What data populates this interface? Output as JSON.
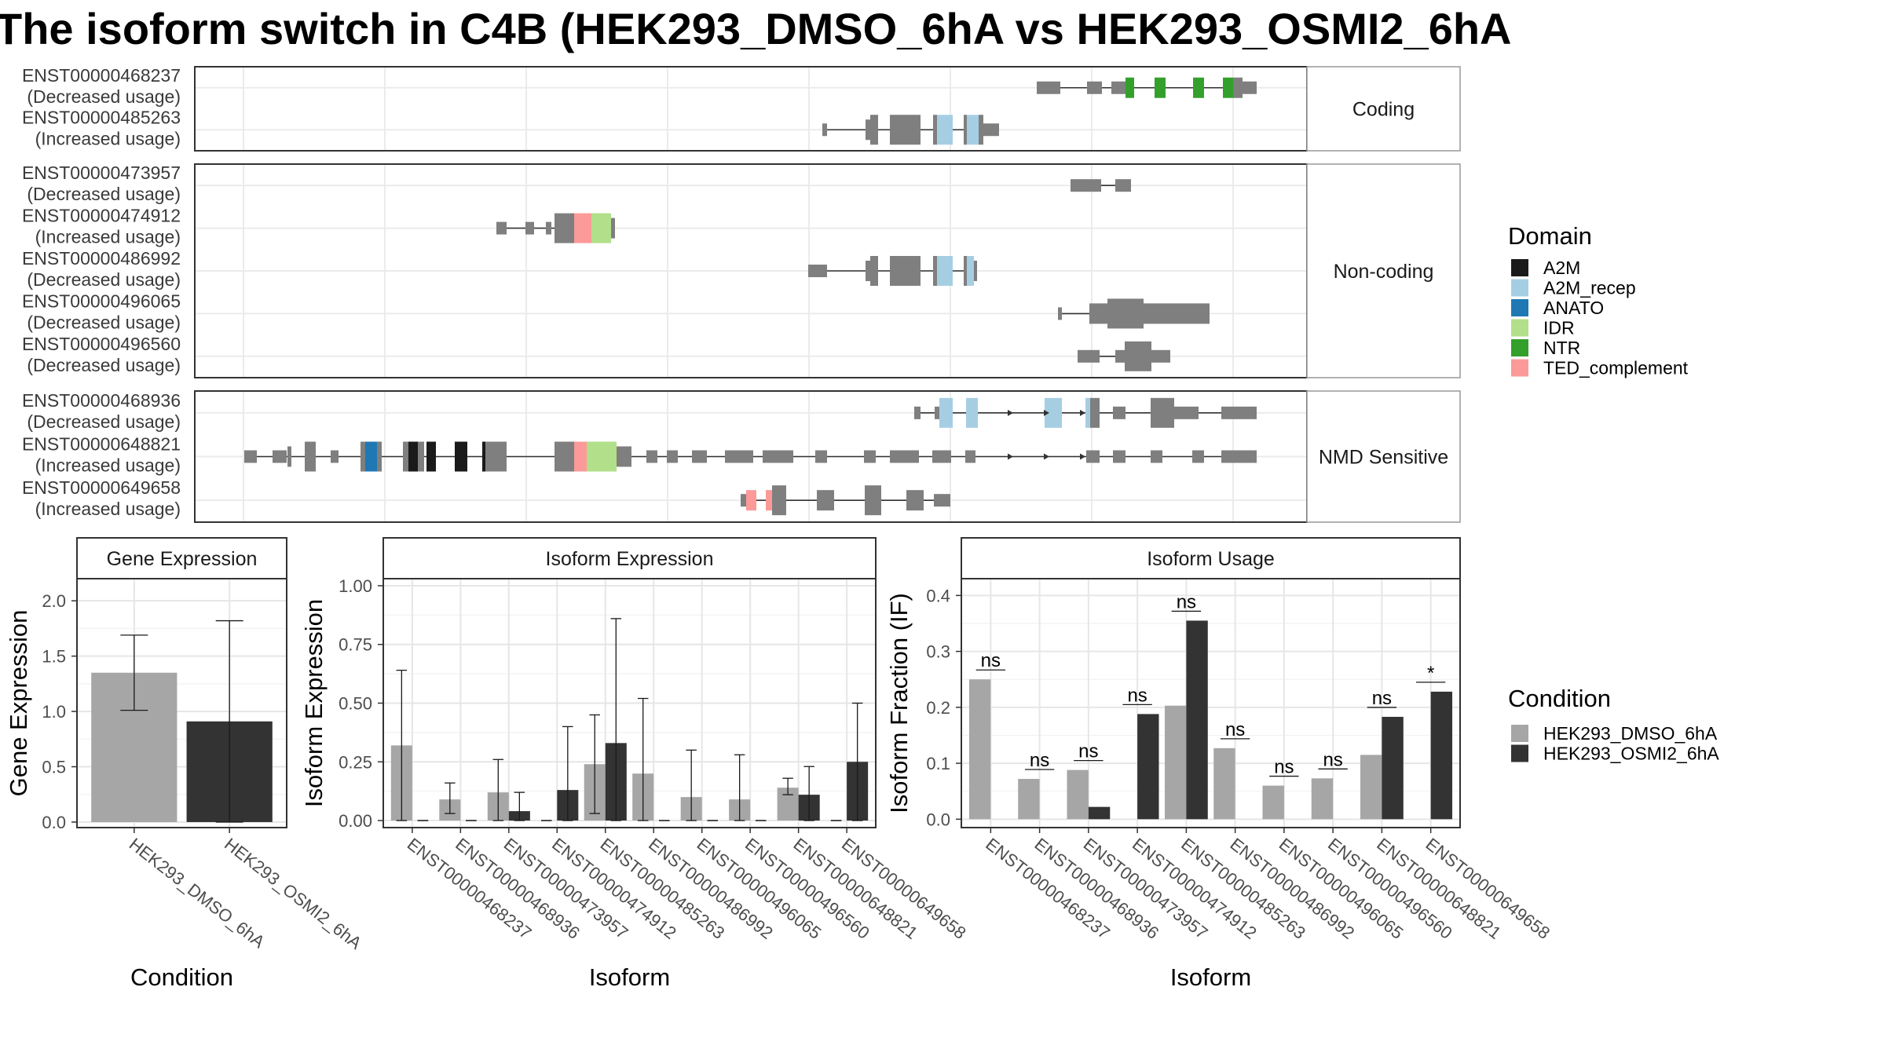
{
  "title": "The isoform switch in C4B (HEK293_DMSO_6hA vs HEK293_OSMI2_6hA",
  "colors": {
    "exon": "#7f7f7f",
    "A2M": "#1a1a1a",
    "A2M_recep": "#a6cee3",
    "ANATO": "#1f78b4",
    "IDR": "#b2df8a",
    "NTR": "#33a02c",
    "TED_complement": "#fb9a99",
    "HEK293_DMSO_6hA": "#a6a6a6",
    "HEK293_OSMI2_6hA": "#333333"
  },
  "structure": {
    "panels": [
      {
        "facet": "Coding",
        "isoforms": [
          {
            "id": "ENST00000468237",
            "usage": "(Decreased usage)",
            "exons": [
              [
                1320,
                1350,
                "exon",
                16
              ],
              [
                1384,
                1403,
                "exon",
                16
              ],
              [
                1415,
                1433,
                "exon",
                16
              ],
              [
                1433,
                1444,
                "NTR",
                26
              ],
              [
                1470,
                1484,
                "NTR",
                26
              ],
              [
                1519,
                1533,
                "NTR",
                26
              ],
              [
                1557,
                1570,
                "NTR",
                26
              ],
              [
                1570,
                1582,
                "exon",
                26
              ],
              [
                1582,
                1600,
                "exon",
                16
              ]
            ]
          },
          {
            "id": "ENST00000485263",
            "usage": "(Increased usage)",
            "exons": [
              [
                1047,
                1053,
                "exon",
                16
              ],
              [
                1102,
                1108,
                "exon",
                26
              ],
              [
                1108,
                1118,
                "exon",
                38
              ],
              [
                1133,
                1172,
                "exon",
                38
              ],
              [
                1188,
                1193,
                "exon",
                38
              ],
              [
                1193,
                1213,
                "A2M_recep",
                38
              ],
              [
                1227,
                1231,
                "exon",
                38
              ],
              [
                1231,
                1246,
                "A2M_recep",
                38
              ],
              [
                1246,
                1252,
                "exon",
                38
              ],
              [
                1252,
                1272,
                "exon",
                16
              ]
            ]
          }
        ]
      },
      {
        "facet": "Non-coding",
        "isoforms": [
          {
            "id": "ENST00000473957",
            "usage": "(Decreased usage)",
            "exons": [
              [
                1363,
                1402,
                "exon",
                16
              ],
              [
                1420,
                1440,
                "exon",
                16
              ]
            ]
          },
          {
            "id": "ENST00000474912",
            "usage": "(Increased usage)",
            "exons": [
              [
                632,
                645,
                "exon",
                16
              ],
              [
                669,
                680,
                "exon",
                16
              ],
              [
                695,
                702,
                "exon",
                16
              ],
              [
                706,
                731,
                "exon",
                38
              ],
              [
                731,
                753,
                "TED_complement",
                38
              ],
              [
                753,
                778,
                "IDR",
                38
              ],
              [
                778,
                783,
                "exon",
                26
              ]
            ]
          },
          {
            "id": "ENST00000486992",
            "usage": "(Decreased usage)",
            "exons": [
              [
                1029,
                1053,
                "exon",
                16
              ],
              [
                1102,
                1108,
                "exon",
                26
              ],
              [
                1108,
                1118,
                "exon",
                38
              ],
              [
                1133,
                1172,
                "exon",
                38
              ],
              [
                1188,
                1193,
                "exon",
                38
              ],
              [
                1193,
                1213,
                "A2M_recep",
                38
              ],
              [
                1227,
                1231,
                "exon",
                38
              ],
              [
                1231,
                1240,
                "A2M_recep",
                38
              ],
              [
                1240,
                1244,
                "exon",
                26
              ]
            ]
          },
          {
            "id": "ENST00000496065",
            "usage": "(Decreased usage)",
            "exons": [
              [
                1347,
                1352,
                "exon",
                16
              ],
              [
                1387,
                1410,
                "exon",
                26
              ],
              [
                1410,
                1456,
                "exon",
                38
              ],
              [
                1456,
                1540,
                "exon",
                26
              ]
            ]
          },
          {
            "id": "ENST00000496560",
            "usage": "(Decreased usage)",
            "exons": [
              [
                1372,
                1400,
                "exon",
                16
              ],
              [
                1420,
                1432,
                "exon",
                16
              ],
              [
                1432,
                1466,
                "exon",
                38
              ],
              [
                1466,
                1490,
                "exon",
                16
              ]
            ]
          }
        ]
      },
      {
        "facet": "NMD Sensitive",
        "isoforms": [
          {
            "id": "ENST00000468936",
            "usage": "(Decreased usage)",
            "exons": [
              [
                1164,
                1172,
                "exon",
                16
              ],
              [
                1190,
                1196,
                "exon",
                16
              ],
              [
                1196,
                1213,
                "A2M_recep",
                38
              ],
              [
                1230,
                1245,
                "A2M_recep",
                38
              ],
              [
                1330,
                1352,
                "A2M_recep",
                38
              ],
              [
                1382,
                1388,
                "A2M_recep",
                38
              ],
              [
                1388,
                1400,
                "exon",
                38
              ],
              [
                1417,
                1433,
                "exon",
                16
              ],
              [
                1465,
                1495,
                "exon",
                38
              ],
              [
                1495,
                1526,
                "exon",
                16
              ],
              [
                1555,
                1600,
                "exon",
                16
              ]
            ]
          },
          {
            "id": "ENST00000648821",
            "usage": "(Increased usage)",
            "exons": [
              [
                311,
                327,
                "exon",
                16
              ],
              [
                347,
                365,
                "exon",
                16
              ],
              [
                366,
                371,
                "exon",
                26
              ],
              [
                388,
                402,
                "exon",
                38
              ],
              [
                421,
                431,
                "exon",
                16
              ],
              [
                459,
                465,
                "exon",
                38
              ],
              [
                465,
                480,
                "ANATO",
                38
              ],
              [
                480,
                486,
                "exon",
                38
              ],
              [
                513,
                520,
                "exon",
                38
              ],
              [
                520,
                532,
                "A2M",
                38
              ],
              [
                532,
                540,
                "exon",
                38
              ],
              [
                543,
                555,
                "A2M",
                38
              ],
              [
                579,
                595,
                "A2M",
                38
              ],
              [
                614,
                618,
                "A2M",
                38
              ],
              [
                618,
                645,
                "exon",
                38
              ],
              [
                706,
                731,
                "exon",
                38
              ],
              [
                731,
                747,
                "TED_complement",
                38
              ],
              [
                747,
                785,
                "IDR",
                38
              ],
              [
                785,
                804,
                "exon",
                26
              ],
              [
                823,
                837,
                "exon",
                16
              ],
              [
                849,
                863,
                "exon",
                16
              ],
              [
                881,
                900,
                "exon",
                16
              ],
              [
                923,
                959,
                "exon",
                16
              ],
              [
                971,
                1010,
                "exon",
                16
              ],
              [
                1038,
                1053,
                "exon",
                16
              ],
              [
                1100,
                1115,
                "exon",
                16
              ],
              [
                1133,
                1170,
                "exon",
                16
              ],
              [
                1187,
                1211,
                "exon",
                16
              ],
              [
                1229,
                1242,
                "exon",
                16
              ],
              [
                1383,
                1400,
                "exon",
                16
              ],
              [
                1417,
                1433,
                "exon",
                16
              ],
              [
                1465,
                1480,
                "exon",
                16
              ],
              [
                1518,
                1533,
                "exon",
                16
              ],
              [
                1555,
                1600,
                "exon",
                16
              ]
            ]
          },
          {
            "id": "ENST00000649658",
            "usage": "(Increased usage)",
            "exons": [
              [
                943,
                950,
                "exon",
                16
              ],
              [
                950,
                963,
                "TED_complement",
                26
              ],
              [
                975,
                983,
                "TED_complement",
                26
              ],
              [
                983,
                1001,
                "exon",
                38
              ],
              [
                1040,
                1062,
                "exon",
                26
              ],
              [
                1101,
                1122,
                "exon",
                38
              ],
              [
                1154,
                1176,
                "exon",
                26
              ],
              [
                1189,
                1210,
                "exon",
                16
              ]
            ]
          }
        ]
      }
    ],
    "arrows": [
      1290,
      1336,
      1382,
      1336,
      1290,
      1382
    ]
  },
  "legend": {
    "domain_title": "Domain",
    "domain_items": [
      "A2M",
      "A2M_recep",
      "ANATO",
      "IDR",
      "NTR",
      "TED_complement"
    ],
    "condition_title": "Condition",
    "condition_items": [
      "HEK293_DMSO_6hA",
      "HEK293_OSMI2_6hA"
    ]
  },
  "chart_data": [
    {
      "type": "bar",
      "title": "Gene Expression",
      "xlabel": "Condition",
      "ylabel": "Gene Expression",
      "ylim": [
        -0.05,
        2.2
      ],
      "yticks": [
        0.0,
        0.5,
        1.0,
        1.5,
        2.0
      ],
      "ytick_labels": [
        "0.0",
        "0.5",
        "1.0",
        "1.5",
        "2.0"
      ],
      "categories": [
        "HEK293_DMSO_6hA",
        "HEK293_OSMI2_6hA"
      ],
      "values": [
        1.35,
        0.91
      ],
      "error_low": [
        1.01,
        0.0
      ],
      "error_high": [
        1.69,
        1.82
      ]
    },
    {
      "type": "bar",
      "title": "Isoform Expression",
      "xlabel": "Isoform",
      "ylabel": "Isoform Expression",
      "ylim": [
        -0.03,
        1.03
      ],
      "yticks": [
        0.0,
        0.25,
        0.5,
        0.75,
        1.0
      ],
      "ytick_labels": [
        "0.00",
        "0.25",
        "0.50",
        "0.75",
        "1.00"
      ],
      "categories": [
        "ENST00000468237",
        "ENST00000468936",
        "ENST00000473957",
        "ENST00000474912",
        "ENST00000485263",
        "ENST00000486992",
        "ENST00000496065",
        "ENST00000496560",
        "ENST00000648821",
        "ENST00000649658"
      ],
      "series": [
        {
          "name": "HEK293_DMSO_6hA",
          "values": [
            0.32,
            0.09,
            0.12,
            0.0,
            0.24,
            0.2,
            0.1,
            0.09,
            0.14,
            0.0
          ],
          "error_low": [
            0.0,
            0.03,
            0.0,
            0.0,
            0.03,
            0.0,
            0.0,
            0.0,
            0.11,
            0.0
          ],
          "error_high": [
            0.64,
            0.16,
            0.26,
            0.0,
            0.45,
            0.52,
            0.3,
            0.28,
            0.18,
            0.0
          ]
        },
        {
          "name": "HEK293_OSMI2_6hA",
          "values": [
            0.0,
            0.0,
            0.04,
            0.13,
            0.33,
            0.0,
            0.0,
            0.0,
            0.11,
            0.25
          ],
          "error_low": [
            0.0,
            0.0,
            0.0,
            0.0,
            0.0,
            0.0,
            0.0,
            0.0,
            0.0,
            0.0
          ],
          "error_high": [
            0.0,
            0.0,
            0.12,
            0.4,
            0.86,
            0.0,
            0.0,
            0.0,
            0.23,
            0.5
          ]
        }
      ]
    },
    {
      "type": "bar",
      "title": "Isoform Usage",
      "xlabel": "Isoform",
      "ylabel": "Isoform Fraction (IF)",
      "ylim": [
        -0.015,
        0.43
      ],
      "yticks": [
        0.0,
        0.1,
        0.2,
        0.3,
        0.4
      ],
      "ytick_labels": [
        "0.0",
        "0.1",
        "0.2",
        "0.3",
        "0.4"
      ],
      "categories": [
        "ENST00000468237",
        "ENST00000468936",
        "ENST00000473957",
        "ENST00000474912",
        "ENST00000485263",
        "ENST00000486992",
        "ENST00000496065",
        "ENST00000496560",
        "ENST00000648821",
        "ENST00000649658"
      ],
      "series": [
        {
          "name": "HEK293_DMSO_6hA",
          "values": [
            0.25,
            0.072,
            0.088,
            0.0,
            0.203,
            0.127,
            0.06,
            0.073,
            0.115,
            0.0
          ]
        },
        {
          "name": "HEK293_OSMI2_6hA",
          "values": [
            0.0,
            0.0,
            0.022,
            0.188,
            0.355,
            0.0,
            0.0,
            0.0,
            0.183,
            0.228
          ]
        }
      ],
      "significance": [
        "ns",
        "ns",
        "ns",
        "ns",
        "ns",
        "ns",
        "ns",
        "ns",
        "ns",
        "*"
      ]
    }
  ]
}
